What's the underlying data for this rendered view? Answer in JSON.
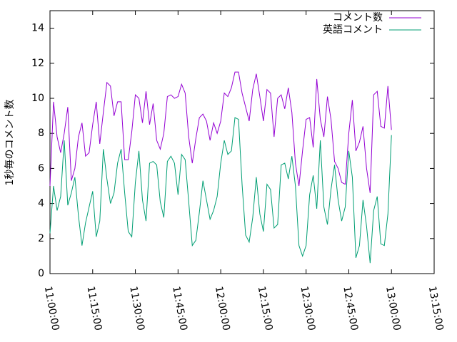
{
  "chart_data": {
    "type": "line",
    "y_label": "1秒毎のコメント数",
    "x": [
      "11:00:00",
      "11:01:15",
      "11:02:30",
      "11:03:45",
      "11:05:00",
      "11:06:15",
      "11:07:30",
      "11:08:45",
      "11:10:00",
      "11:11:15",
      "11:12:30",
      "11:13:45",
      "11:15:00",
      "11:16:15",
      "11:17:30",
      "11:18:45",
      "11:20:00",
      "11:21:15",
      "11:22:30",
      "11:23:45",
      "11:25:00",
      "11:26:15",
      "11:27:30",
      "11:28:45",
      "11:30:00",
      "11:31:15",
      "11:32:30",
      "11:33:45",
      "11:35:00",
      "11:36:15",
      "11:37:30",
      "11:38:45",
      "11:40:00",
      "11:41:15",
      "11:42:30",
      "11:43:45",
      "11:45:00",
      "11:46:15",
      "11:47:30",
      "11:48:45",
      "11:50:00",
      "11:51:15",
      "11:52:30",
      "11:53:45",
      "11:55:00",
      "11:56:15",
      "11:57:30",
      "11:58:45",
      "12:00:00",
      "12:01:15",
      "12:02:30",
      "12:03:45",
      "12:05:00",
      "12:06:15",
      "12:07:30",
      "12:08:45",
      "12:10:00",
      "12:11:15",
      "12:12:30",
      "12:13:45",
      "12:15:00",
      "12:16:15",
      "12:17:30",
      "12:18:45",
      "12:20:00",
      "12:21:15",
      "12:22:30",
      "12:23:45",
      "12:25:00",
      "12:26:15",
      "12:27:30",
      "12:28:45",
      "12:30:00",
      "12:31:15",
      "12:32:30",
      "12:33:45",
      "12:35:00",
      "12:36:15",
      "12:37:30",
      "12:38:45",
      "12:40:00",
      "12:41:15",
      "12:42:30",
      "12:43:45",
      "12:45:00",
      "12:46:15",
      "12:47:30",
      "12:48:45",
      "12:50:00",
      "12:51:15",
      "12:52:30",
      "12:53:45",
      "12:55:00",
      "12:56:15",
      "12:57:30",
      "12:58:45",
      "13:00:00"
    ],
    "series": [
      {
        "name": "コメント数",
        "color": "#9400d3",
        "values": [
          5,
          9.8,
          7.8,
          6.9,
          8,
          9.5,
          5.3,
          6,
          7.8,
          8.6,
          6.7,
          6.9,
          8.5,
          9.8,
          7.4,
          9.2,
          10.9,
          10.7,
          9,
          9.8,
          9.8,
          6.5,
          6.5,
          8.1,
          10.2,
          10,
          8.6,
          10.4,
          8.5,
          9.7,
          7.6,
          7.1,
          8,
          10.1,
          10.2,
          10,
          10.1,
          10.8,
          10.3,
          7.8,
          6.3,
          7.7,
          8.9,
          9.1,
          8.7,
          7.6,
          8.6,
          8,
          8.7,
          10.3,
          10.1,
          10.6,
          11.5,
          11.5,
          10.3,
          9.5,
          8.7,
          10.5,
          11.4,
          10.1,
          8.7,
          10.5,
          10.3,
          7.8,
          10,
          10.2,
          9.4,
          10.6,
          9.2,
          6.3,
          5,
          7,
          8.8,
          8.9,
          7.2,
          11.1,
          8.8,
          7.8,
          10.1,
          8.8,
          6.4,
          6,
          5.2,
          5.1,
          8,
          9.9,
          7,
          7.5,
          8.4,
          6,
          4.6,
          10.2,
          10.4,
          8.4,
          8.3,
          10.7,
          8.2
        ]
      },
      {
        "name": "英語コメント",
        "color": "#009e73",
        "values": [
          2.3,
          5,
          3.6,
          4.4,
          7.6,
          3.9,
          4.6,
          5.5,
          3.3,
          1.6,
          2.9,
          3.8,
          4.7,
          2.1,
          3,
          7.1,
          5.4,
          4,
          4.6,
          6.3,
          7.1,
          4.6,
          2.4,
          2.1,
          5.2,
          7,
          4.2,
          3,
          6.3,
          6.4,
          6.2,
          4.1,
          3.2,
          6.4,
          6.7,
          6.3,
          4.5,
          6.8,
          6.5,
          4.1,
          1.6,
          1.9,
          3.5,
          5.3,
          4.2,
          3.1,
          3.6,
          4.4,
          6.3,
          7.6,
          6.8,
          7,
          8.9,
          8.8,
          5.1,
          2.2,
          1.8,
          3.2,
          5.5,
          3.4,
          2.4,
          5.1,
          4.8,
          2.6,
          2.8,
          6.2,
          6.3,
          5.4,
          6.7,
          5,
          1.6,
          1,
          1.6,
          4.5,
          5.6,
          3.7,
          7.6,
          3.8,
          2.8,
          4.8,
          6.2,
          4.2,
          3,
          3.8,
          7,
          5.5,
          0.9,
          1.6,
          4.2,
          2.7,
          0.6,
          3.6,
          4.4,
          1.7,
          1.6,
          3.4,
          7.9
        ]
      }
    ],
    "xlim": [
      "11:00:00",
      "13:15:00"
    ],
    "xticks": [
      "11:00:00",
      "11:15:00",
      "11:30:00",
      "11:45:00",
      "12:00:00",
      "12:15:00",
      "12:30:00",
      "12:45:00",
      "13:00:00",
      "13:15:00"
    ],
    "ylim": [
      0,
      15
    ],
    "yticks": [
      0,
      2,
      4,
      6,
      8,
      10,
      12,
      14
    ],
    "legend": "top-right"
  }
}
